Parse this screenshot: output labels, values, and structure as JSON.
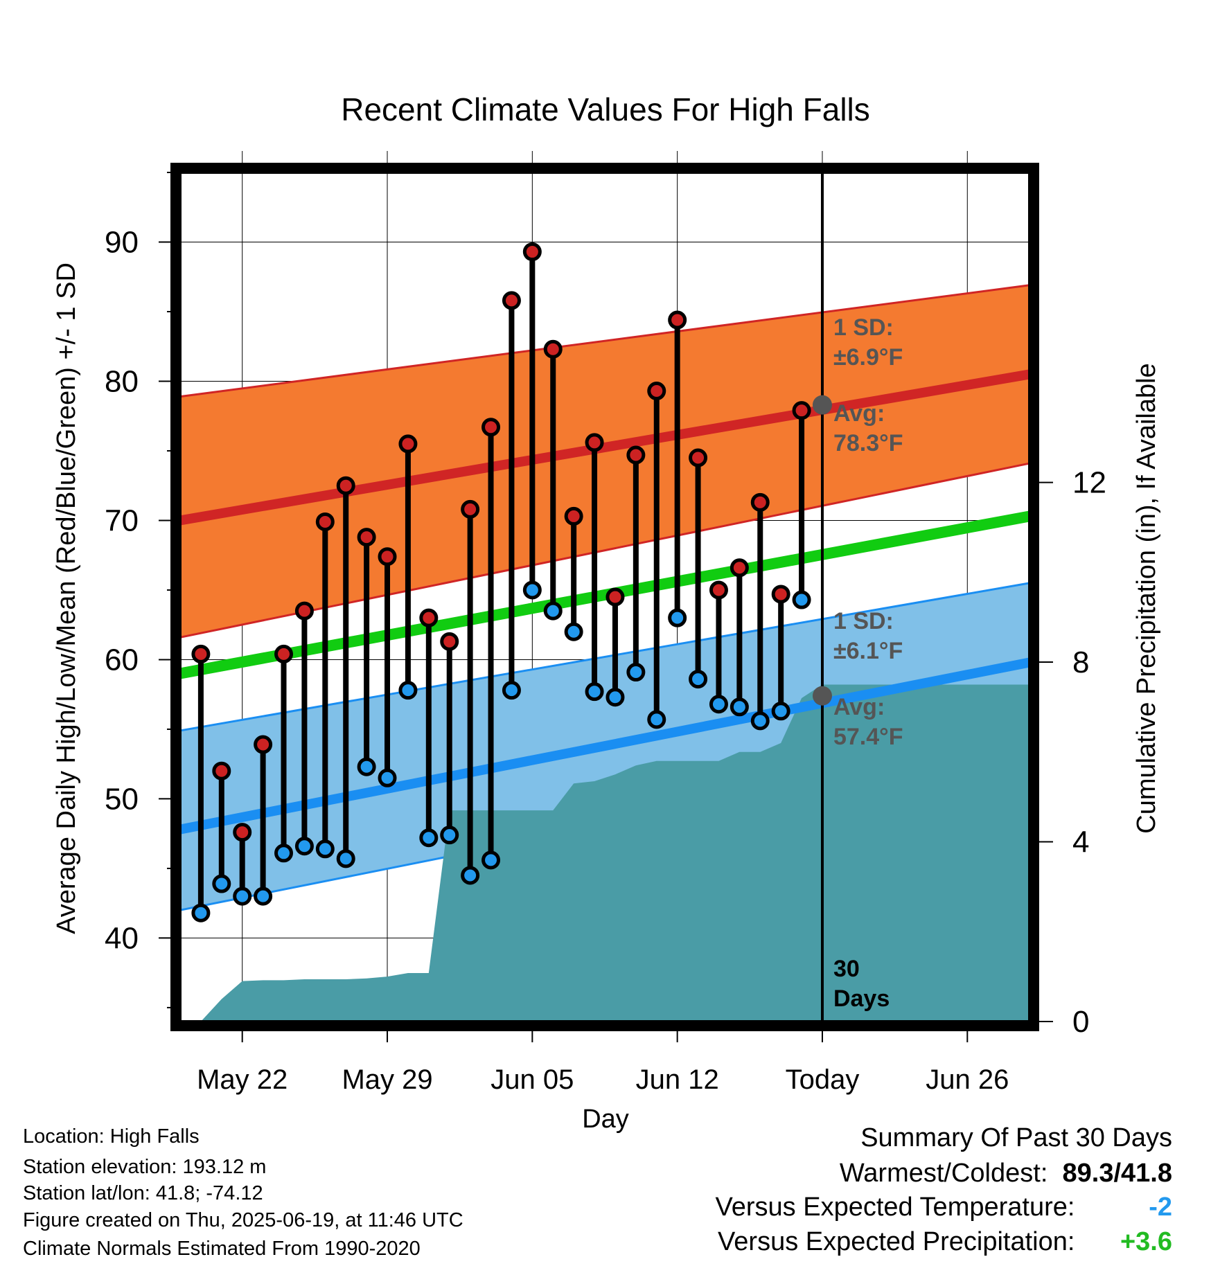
{
  "chart_data": {
    "type": "line",
    "title": "Recent Climate Values For High Falls",
    "xlabel": "Day",
    "ylabel": "Average Daily High/Low/Mean (Red/Blue/Green) +/- 1 SD",
    "y2label": "Cumulative Precipitation (in), If Available",
    "x_ticks": [
      "May 22",
      "May 29",
      "Jun 05",
      "Jun 12",
      "Today",
      "Jun 26"
    ],
    "x_range": [
      "2025-05-19",
      "2025-06-29"
    ],
    "today": "2025-06-19",
    "ylim": [
      34,
      95
    ],
    "y_ticks": [
      40,
      50,
      60,
      70,
      80,
      90
    ],
    "y2lim": [
      0,
      18.9
    ],
    "y2_ticks": [
      0,
      4,
      8,
      12
    ],
    "grid": true,
    "dates": [
      "2025-05-20",
      "2025-05-21",
      "2025-05-22",
      "2025-05-23",
      "2025-05-24",
      "2025-05-25",
      "2025-05-26",
      "2025-05-27",
      "2025-05-28",
      "2025-05-29",
      "2025-05-30",
      "2025-05-31",
      "2025-06-01",
      "2025-06-02",
      "2025-06-03",
      "2025-06-04",
      "2025-06-05",
      "2025-06-06",
      "2025-06-07",
      "2025-06-08",
      "2025-06-09",
      "2025-06-10",
      "2025-06-11",
      "2025-06-12",
      "2025-06-13",
      "2025-06-14",
      "2025-06-15",
      "2025-06-16",
      "2025-06-17",
      "2025-06-18"
    ],
    "series": [
      {
        "name": "High",
        "color": "#cc2222",
        "values": [
          60.4,
          52.0,
          47.6,
          53.9,
          60.4,
          63.5,
          69.9,
          72.5,
          68.8,
          67.4,
          75.5,
          63.0,
          61.3,
          70.8,
          76.7,
          85.8,
          89.3,
          82.3,
          70.3,
          75.6,
          64.5,
          74.7,
          79.3,
          84.4,
          74.5,
          65.0,
          66.6,
          71.3,
          64.7,
          77.9
        ]
      },
      {
        "name": "Low",
        "color": "#2299ee",
        "values": [
          41.8,
          43.9,
          43.0,
          43.0,
          46.1,
          46.6,
          46.4,
          45.7,
          52.3,
          51.5,
          57.8,
          47.2,
          47.4,
          44.5,
          45.6,
          57.8,
          65.0,
          63.5,
          62.0,
          57.7,
          57.3,
          59.1,
          55.7,
          63.0,
          58.6,
          56.8,
          56.6,
          55.6,
          56.3,
          64.3
        ]
      }
    ],
    "normals": {
      "dates": [
        "2025-05-19",
        "2025-06-29"
      ],
      "high_avg": [
        70.0,
        80.5
      ],
      "high_upper": [
        78.9,
        86.9
      ],
      "high_lower": [
        61.6,
        74.1
      ],
      "mean_avg": [
        59.0,
        70.3
      ],
      "low_avg": [
        47.8,
        59.8
      ],
      "low_upper": [
        54.9,
        65.5
      ],
      "low_lower": [
        42.0,
        54.2
      ]
    },
    "precipitation": {
      "name": "Cumulative Precipitation",
      "color": "#4a9ca6",
      "dates": [
        "2025-05-20",
        "2025-05-21",
        "2025-05-22",
        "2025-05-23",
        "2025-05-24",
        "2025-05-25",
        "2025-05-26",
        "2025-05-27",
        "2025-05-28",
        "2025-05-29",
        "2025-05-30",
        "2025-05-31",
        "2025-06-01",
        "2025-06-02",
        "2025-06-03",
        "2025-06-04",
        "2025-06-05",
        "2025-06-06",
        "2025-06-07",
        "2025-06-08",
        "2025-06-09",
        "2025-06-10",
        "2025-06-11",
        "2025-06-12",
        "2025-06-13",
        "2025-06-14",
        "2025-06-15",
        "2025-06-16",
        "2025-06-17",
        "2025-06-18",
        "2025-06-19",
        "2025-06-29"
      ],
      "values": [
        0.0,
        0.5,
        0.9,
        0.92,
        0.92,
        0.94,
        0.94,
        0.94,
        0.96,
        1.0,
        1.08,
        1.08,
        4.7,
        4.7,
        4.7,
        4.7,
        4.7,
        4.7,
        5.3,
        5.35,
        5.5,
        5.7,
        5.8,
        5.8,
        5.8,
        5.8,
        6.0,
        6.0,
        6.2,
        7.2,
        7.5,
        7.5
      ]
    },
    "annotations": {
      "high_sd_label": "1 SD:",
      "high_sd_value": "±6.9°F",
      "high_avg_label": "Avg:",
      "high_avg_value": "78.3°F",
      "high_avg_today": 78.3,
      "low_sd_label": "1 SD:",
      "low_sd_value": "±6.1°F",
      "low_avg_label": "Avg:",
      "low_avg_value": "57.4°F",
      "low_avg_today": 57.4,
      "period_line1": "30",
      "period_line2": "Days"
    },
    "colors": {
      "high_band": "#f47a30",
      "high_line": "#d02525",
      "mean_line": "#11cc11",
      "low_band": "#80c0e8",
      "low_line": "#1a8ef2",
      "marker_today": "#555555",
      "annotation_text": "#555555"
    }
  },
  "info": {
    "location": "Location: High Falls",
    "elevation": "Station elevation: 193.12 m",
    "latlon": "Station lat/lon: 41.8; -74.12",
    "created": "Figure created on Thu, 2025-06-19, at 11:46 UTC",
    "normals": "Climate Normals Estimated From 1990-2020"
  },
  "summary": {
    "heading": "Summary Of Past 30 Days",
    "warm_cold_label": "Warmest/Coldest:",
    "warm_cold_value": "89.3/41.8",
    "temp_label": "Versus Expected Temperature:",
    "temp_value": "-2",
    "temp_color": "#2299ee",
    "precip_label": "Versus Expected Precipitation:",
    "precip_value": "+3.6",
    "precip_color": "#22bb22"
  }
}
